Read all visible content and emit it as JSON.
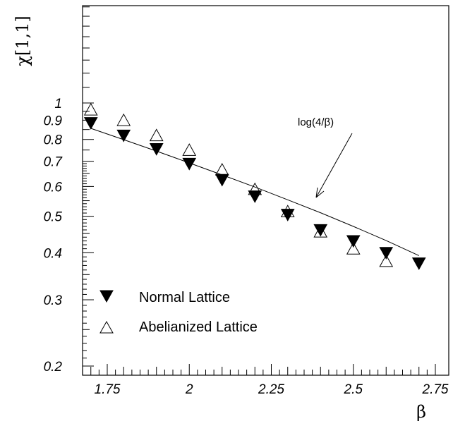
{
  "chart_data": {
    "type": "scatter",
    "title": "",
    "xlabel": "β",
    "ylabel": "χ[1,1]",
    "xlim": [
      1.6,
      2.75
    ],
    "ylim": [
      0.19,
      2.0
    ],
    "yscale": "log",
    "grid": false,
    "legend_position": "bottom-left",
    "x_ticks": [
      1.75,
      2,
      2.25,
      2.5,
      2.75
    ],
    "x_tick_labels": [
      "1.75",
      "2",
      "2.25",
      "2.5",
      "2.75"
    ],
    "y_ticks": [
      0.2,
      0.3,
      0.4,
      0.5,
      0.6,
      0.7,
      0.8,
      0.9,
      1
    ],
    "y_tick_labels": [
      "0.2",
      "0.3",
      "0.4",
      "0.5",
      "0.6",
      "0.7",
      "0.8",
      "0.9",
      "1"
    ],
    "series": [
      {
        "name": "Normal Lattice",
        "marker": "filled-down-triangle",
        "color": "#000000",
        "x": [
          1.7,
          1.8,
          1.9,
          2.0,
          2.1,
          2.2,
          2.3,
          2.4,
          2.5,
          2.6,
          2.7
        ],
        "y": [
          0.885,
          0.82,
          0.755,
          0.69,
          0.625,
          0.565,
          0.505,
          0.46,
          0.43,
          0.4,
          0.375
        ]
      },
      {
        "name": "Abelianized Lattice",
        "marker": "open-up-triangle",
        "color": "#000000",
        "x": [
          1.7,
          1.8,
          1.9,
          2.0,
          2.1,
          2.2,
          2.3,
          2.4,
          2.5,
          2.6
        ],
        "y": [
          0.96,
          0.9,
          0.82,
          0.75,
          0.665,
          0.59,
          0.515,
          0.455,
          0.41,
          0.38
        ]
      }
    ],
    "curve": {
      "label": "log(4/β)",
      "x": [
        1.7,
        1.8,
        1.9,
        2.0,
        2.1,
        2.2,
        2.3,
        2.4,
        2.5,
        2.6,
        2.7
      ],
      "y": [
        0.856,
        0.799,
        0.745,
        0.693,
        0.644,
        0.598,
        0.553,
        0.511,
        0.47,
        0.431,
        0.393
      ]
    }
  }
}
